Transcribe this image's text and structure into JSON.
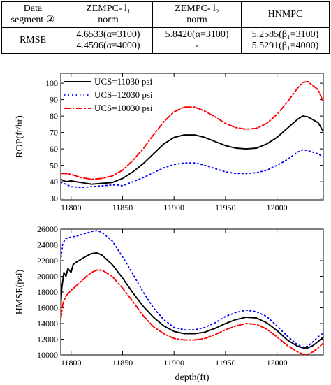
{
  "table": {
    "header": [
      [
        "Data",
        "segment ②"
      ],
      [
        "ZEMPC- l₁",
        "norm"
      ],
      [
        "ZEMPC- l₂",
        "norm"
      ],
      [
        "HNMPC"
      ]
    ],
    "row_label": "RMSE",
    "cells": [
      [
        "4.6533(α=3100)",
        "4.4596(α=4000)"
      ],
      [
        "5.8420(α=3100)",
        "-"
      ],
      [
        "5.2585(β₁=3100)",
        "5.5291(β₁=4000)"
      ]
    ]
  },
  "chart_data": [
    {
      "type": "line",
      "ylabel": "ROP(ft/hr)",
      "xlim": [
        11790,
        12045
      ],
      "ylim": [
        29,
        106
      ],
      "xticks": [
        11800,
        11850,
        11900,
        11950,
        12000
      ],
      "yticks": [
        30,
        40,
        50,
        60,
        70,
        80,
        90,
        100
      ],
      "legend_position": "top-left",
      "series": [
        {
          "name": "UCS=11030 psi",
          "style": "solid",
          "color": "#000000",
          "x": [
            11790,
            11795,
            11800,
            11810,
            11820,
            11830,
            11840,
            11850,
            11860,
            11870,
            11880,
            11890,
            11900,
            11910,
            11920,
            11930,
            11940,
            11950,
            11960,
            11970,
            11980,
            11990,
            12000,
            12010,
            12020,
            12025,
            12030,
            12040,
            12045
          ],
          "y": [
            41.5,
            40,
            40.5,
            39.5,
            38.5,
            39,
            39.5,
            42,
            46,
            51,
            57,
            63,
            67,
            68.5,
            68.5,
            67,
            64.5,
            62,
            60.5,
            60,
            60.5,
            63,
            67,
            72.5,
            78,
            80,
            79.5,
            76,
            70.5
          ]
        },
        {
          "name": "UCS=12030 psi",
          "style": "dotted",
          "color": "#0000ff",
          "x": [
            11790,
            11795,
            11800,
            11810,
            11820,
            11830,
            11840,
            11845,
            11850,
            11860,
            11870,
            11880,
            11890,
            11900,
            11910,
            11920,
            11930,
            11940,
            11950,
            11960,
            11970,
            11980,
            11990,
            12000,
            12010,
            12020,
            12025,
            12030,
            12040,
            12045
          ],
          "y": [
            39.5,
            38.5,
            37,
            36.5,
            37,
            37.5,
            38,
            38,
            37.5,
            40,
            42.5,
            45.5,
            48.5,
            50.5,
            51.5,
            51.5,
            50,
            48,
            46,
            45,
            45,
            45.5,
            47,
            50,
            53.5,
            58,
            59.5,
            59,
            57,
            55
          ]
        },
        {
          "name": "UCS=10030 psi",
          "style": "dashdot",
          "color": "#ff0000",
          "x": [
            11790,
            11795,
            11800,
            11810,
            11820,
            11830,
            11840,
            11850,
            11860,
            11870,
            11880,
            11890,
            11900,
            11910,
            11920,
            11930,
            11940,
            11950,
            11960,
            11970,
            11980,
            11990,
            12000,
            12010,
            12020,
            12025,
            12030,
            12040,
            12045
          ],
          "y": [
            45,
            45,
            44.5,
            42.5,
            41.5,
            42,
            43.5,
            47,
            53,
            60,
            68.5,
            76.5,
            82.5,
            85.5,
            85.5,
            83,
            79.5,
            75.5,
            73,
            72,
            72.5,
            75.5,
            81,
            88.5,
            97,
            100.5,
            101,
            96,
            88.5
          ]
        }
      ]
    },
    {
      "type": "line",
      "ylabel": "HMSE(psi)",
      "xlabel": "depth(ft)",
      "xlim": [
        11790,
        12045
      ],
      "ylim": [
        10000,
        26000
      ],
      "xticks": [
        11800,
        11850,
        11900,
        11950,
        12000
      ],
      "yticks": [
        10000,
        12000,
        14000,
        16000,
        18000,
        20000,
        22000,
        24000,
        26000
      ],
      "series": [
        {
          "name": "UCS=11030 psi",
          "style": "solid",
          "color": "#000000",
          "x": [
            11790,
            11791,
            11793,
            11795,
            11797,
            11800,
            11802,
            11805,
            11810,
            11815,
            11820,
            11825,
            11830,
            11835,
            11840,
            11850,
            11860,
            11870,
            11880,
            11890,
            11900,
            11910,
            11920,
            11930,
            11940,
            11950,
            11960,
            11970,
            11980,
            11990,
            12000,
            12010,
            12020,
            12025,
            12030,
            12035,
            12040,
            12045
          ],
          "y": [
            16000,
            18500,
            20500,
            20000,
            21000,
            20500,
            21500,
            21800,
            22200,
            22600,
            22900,
            23000,
            22700,
            22100,
            21500,
            19800,
            17900,
            16200,
            14800,
            13700,
            13000,
            12700,
            12700,
            12900,
            13400,
            14000,
            14500,
            14800,
            14700,
            14100,
            13100,
            11900,
            11100,
            10900,
            10900,
            11200,
            11700,
            12300
          ]
        },
        {
          "name": "UCS=12030 psi",
          "style": "dotted",
          "color": "#0000ff",
          "x": [
            11790,
            11792,
            11795,
            11800,
            11805,
            11810,
            11815,
            11820,
            11825,
            11830,
            11840,
            11850,
            11860,
            11870,
            11880,
            11890,
            11900,
            11910,
            11920,
            11930,
            11940,
            11950,
            11960,
            11970,
            11980,
            11990,
            12000,
            12010,
            12020,
            12025,
            12030,
            12035,
            12040,
            12045
          ],
          "y": [
            22000,
            24200,
            24800,
            25000,
            25100,
            25300,
            25500,
            25700,
            25800,
            25600,
            24500,
            22500,
            20300,
            18000,
            16000,
            14500,
            13500,
            13200,
            13200,
            13500,
            14100,
            14900,
            15400,
            15700,
            15500,
            14900,
            13700,
            12400,
            11300,
            11000,
            11100,
            11700,
            12300,
            12800
          ]
        },
        {
          "name": "UCS=10030 psi",
          "style": "dashdot",
          "color": "#ff0000",
          "x": [
            11790,
            11792,
            11795,
            11800,
            11805,
            11810,
            11815,
            11820,
            11825,
            11830,
            11840,
            11850,
            11860,
            11870,
            11880,
            11890,
            11900,
            11910,
            11920,
            11930,
            11940,
            11950,
            11960,
            11970,
            11980,
            11990,
            12000,
            12010,
            12020,
            12025,
            12030,
            12035,
            12040,
            12045
          ],
          "y": [
            14500,
            16500,
            17500,
            18200,
            18800,
            19400,
            20000,
            20500,
            20800,
            20800,
            20000,
            18500,
            16800,
            15000,
            13600,
            12700,
            12100,
            11900,
            11900,
            12100,
            12600,
            13200,
            13700,
            14000,
            13900,
            13300,
            12300,
            11200,
            10400,
            10100,
            10100,
            10400,
            10900,
            11500
          ]
        }
      ]
    }
  ]
}
